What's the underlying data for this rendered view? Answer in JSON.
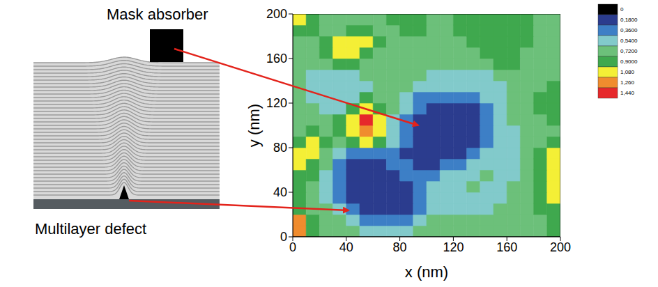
{
  "chart_data": {
    "type": "contour",
    "x_label": "x (nm)",
    "y_label": "y (nm)",
    "xlim": [
      0,
      200
    ],
    "ylim": [
      0,
      200
    ],
    "xticks": [
      0,
      40,
      80,
      120,
      160,
      200
    ],
    "yticks": [
      0,
      40,
      80,
      120,
      160,
      200
    ],
    "cells": {
      "x": [
        5,
        15,
        25,
        35,
        45,
        55,
        65,
        75,
        85,
        95,
        105,
        115,
        125,
        135,
        145,
        155,
        165,
        175,
        185,
        195
      ],
      "y": [
        5,
        15,
        25,
        35,
        45,
        55,
        65,
        75,
        85,
        95,
        105,
        115,
        125,
        135,
        145,
        155,
        165,
        175,
        185,
        195
      ],
      "z": [
        [
          1.35,
          0.99,
          0.81,
          0.81,
          0.81,
          0.63,
          0.63,
          0.63,
          0.63,
          0.81,
          0.81,
          0.81,
          0.81,
          0.81,
          0.81,
          0.81,
          0.81,
          0.81,
          0.81,
          0.99
        ],
        [
          1.35,
          0.99,
          0.81,
          0.81,
          0.63,
          0.45,
          0.45,
          0.45,
          0.45,
          0.63,
          0.81,
          0.81,
          0.81,
          0.81,
          0.81,
          0.81,
          0.81,
          0.81,
          0.81,
          0.99
        ],
        [
          0.99,
          0.81,
          0.81,
          0.63,
          0.45,
          0.27,
          0.27,
          0.27,
          0.27,
          0.45,
          0.63,
          0.63,
          0.63,
          0.63,
          0.63,
          0.81,
          0.81,
          0.81,
          0.99,
          0.99
        ],
        [
          0.99,
          0.81,
          0.63,
          0.45,
          0.27,
          0.27,
          0.27,
          0.27,
          0.27,
          0.45,
          0.63,
          0.63,
          0.63,
          0.63,
          0.63,
          0.63,
          0.81,
          0.81,
          0.99,
          1.17
        ],
        [
          0.99,
          0.81,
          0.63,
          0.45,
          0.27,
          0.27,
          0.27,
          0.27,
          0.27,
          0.45,
          0.63,
          0.63,
          0.63,
          0.81,
          0.63,
          0.63,
          0.81,
          0.81,
          0.99,
          1.17
        ],
        [
          0.99,
          0.99,
          0.63,
          0.45,
          0.27,
          0.27,
          0.27,
          0.27,
          0.45,
          0.45,
          0.45,
          0.63,
          0.63,
          0.63,
          0.81,
          0.63,
          0.63,
          0.81,
          0.99,
          1.17
        ],
        [
          1.17,
          0.99,
          0.81,
          0.45,
          0.27,
          0.27,
          0.27,
          0.45,
          0.45,
          0.27,
          0.27,
          0.45,
          0.45,
          0.63,
          0.63,
          0.63,
          0.63,
          0.81,
          0.99,
          1.17
        ],
        [
          1.17,
          1.17,
          0.81,
          0.63,
          0.45,
          0.45,
          0.45,
          0.45,
          0.27,
          0.27,
          0.27,
          0.27,
          0.27,
          0.45,
          0.63,
          0.63,
          0.63,
          0.81,
          0.99,
          1.17
        ],
        [
          0.99,
          1.17,
          0.99,
          0.81,
          0.99,
          1.17,
          0.99,
          0.63,
          0.45,
          0.27,
          0.27,
          0.27,
          0.27,
          0.27,
          0.45,
          0.63,
          0.63,
          0.81,
          0.81,
          0.99
        ],
        [
          0.81,
          0.99,
          0.81,
          0.99,
          1.17,
          1.35,
          1.17,
          0.63,
          0.45,
          0.27,
          0.27,
          0.27,
          0.27,
          0.27,
          0.45,
          0.63,
          0.63,
          0.81,
          0.81,
          0.81
        ],
        [
          0.81,
          0.81,
          0.81,
          0.99,
          1.17,
          1.5,
          1.17,
          0.63,
          0.45,
          0.27,
          0.27,
          0.27,
          0.27,
          0.27,
          0.45,
          0.63,
          0.81,
          0.81,
          0.81,
          0.99
        ],
        [
          0.81,
          0.81,
          0.63,
          0.63,
          0.99,
          1.17,
          0.99,
          0.81,
          0.63,
          0.45,
          0.27,
          0.27,
          0.27,
          0.27,
          0.45,
          0.63,
          0.81,
          0.81,
          0.99,
          0.99
        ],
        [
          0.81,
          0.63,
          0.63,
          0.63,
          0.63,
          0.99,
          0.81,
          0.81,
          0.63,
          0.45,
          0.45,
          0.45,
          0.45,
          0.45,
          0.63,
          0.63,
          0.81,
          0.81,
          0.99,
          0.99
        ],
        [
          0.81,
          0.63,
          0.63,
          0.63,
          0.63,
          0.63,
          0.81,
          0.81,
          0.81,
          0.63,
          0.63,
          0.63,
          0.63,
          0.63,
          0.63,
          0.63,
          0.81,
          0.81,
          0.81,
          0.99
        ],
        [
          0.81,
          0.63,
          0.63,
          0.63,
          0.63,
          0.81,
          0.81,
          0.81,
          0.81,
          0.81,
          0.63,
          0.63,
          0.63,
          0.63,
          0.63,
          0.81,
          0.81,
          0.81,
          0.81,
          0.81
        ],
        [
          0.81,
          0.81,
          0.81,
          0.99,
          0.99,
          0.81,
          0.81,
          0.81,
          0.81,
          0.81,
          0.81,
          0.81,
          0.81,
          0.81,
          0.81,
          0.99,
          0.99,
          0.81,
          0.81,
          0.81
        ],
        [
          0.81,
          0.81,
          0.99,
          1.17,
          1.17,
          0.99,
          0.81,
          0.81,
          0.81,
          0.81,
          0.81,
          0.81,
          0.81,
          0.81,
          0.99,
          0.99,
          0.99,
          0.81,
          0.81,
          0.81
        ],
        [
          0.81,
          0.81,
          0.99,
          1.17,
          1.17,
          1.17,
          0.99,
          0.81,
          0.81,
          0.81,
          0.81,
          0.81,
          0.81,
          0.99,
          0.99,
          0.99,
          0.99,
          0.99,
          0.81,
          0.81
        ],
        [
          0.99,
          0.99,
          0.81,
          0.81,
          0.99,
          0.99,
          0.81,
          0.81,
          0.99,
          0.99,
          0.81,
          0.81,
          0.99,
          0.99,
          0.99,
          0.99,
          0.99,
          0.99,
          0.81,
          0.81
        ],
        [
          1.17,
          0.99,
          0.81,
          0.81,
          0.81,
          0.81,
          0.81,
          0.99,
          0.99,
          0.99,
          0.81,
          0.81,
          0.99,
          0.99,
          0.99,
          0.99,
          0.99,
          0.99,
          0.81,
          0.81
        ]
      ]
    },
    "colorbar": {
      "ticks": [
        0,
        {
          "value": 0.18,
          "label": "0,1800"
        },
        {
          "value": 0.36,
          "label": "0,3600"
        },
        {
          "value": 0.54,
          "label": "0,5400"
        },
        {
          "value": 0.72,
          "label": "0,7200"
        },
        {
          "value": 0.9,
          "label": "0,9000"
        },
        {
          "value": 1.08,
          "label": "1,080"
        },
        {
          "value": 1.26,
          "label": "1,260"
        },
        {
          "value": 1.44,
          "label": "1,440"
        }
      ],
      "colors": [
        "#000000",
        "#2b3c8e",
        "#3d7fc6",
        "#82cacb",
        "#6cc07a",
        "#3fa84e",
        "#f4ef36",
        "#f08c2e",
        "#e6282b"
      ]
    }
  },
  "diagram": {
    "mask_label": "Mask absorber",
    "defect_label": "Multilayer defect"
  }
}
